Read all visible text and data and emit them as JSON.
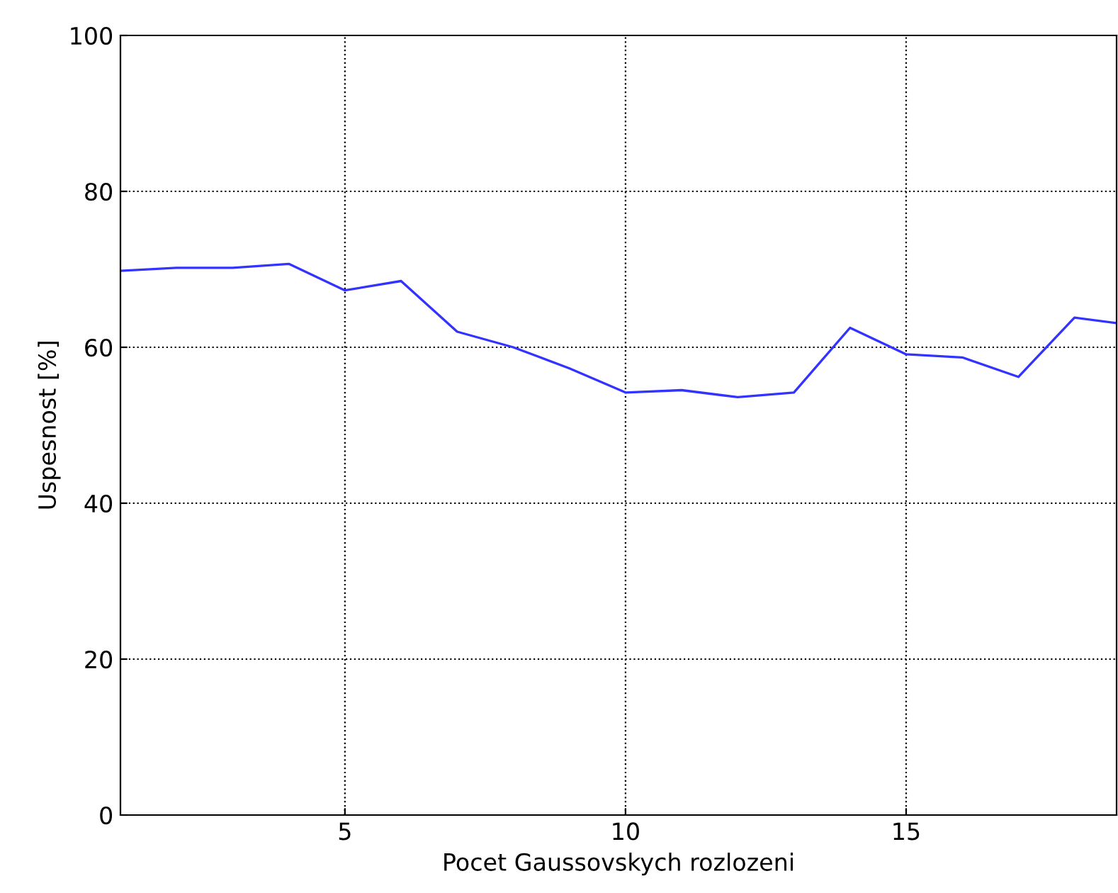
{
  "chart_data": {
    "type": "line",
    "xlabel": "Pocet Gaussovskych rozlozeni",
    "ylabel": "Uspesnost [%]",
    "x": [
      1,
      2,
      3,
      4,
      5,
      6,
      7,
      8,
      9,
      10,
      11,
      12,
      13,
      14,
      15,
      16,
      17,
      18,
      18.75
    ],
    "series": [
      {
        "color": "#3333ff",
        "values": [
          69.8,
          70.2,
          70.2,
          70.7,
          67.3,
          68.5,
          62.0,
          60.0,
          57.3,
          54.2,
          54.5,
          53.6,
          54.2,
          62.5,
          59.1,
          58.7,
          56.2,
          63.8,
          63.1
        ]
      }
    ],
    "xlim": [
      1,
      18.75
    ],
    "ylim": [
      0,
      100
    ],
    "xticks": [
      5,
      10,
      15
    ],
    "yticks": [
      0,
      20,
      40,
      60,
      80,
      100
    ],
    "grid": true,
    "legend": false,
    "marker": "none",
    "line_style": "solid"
  }
}
